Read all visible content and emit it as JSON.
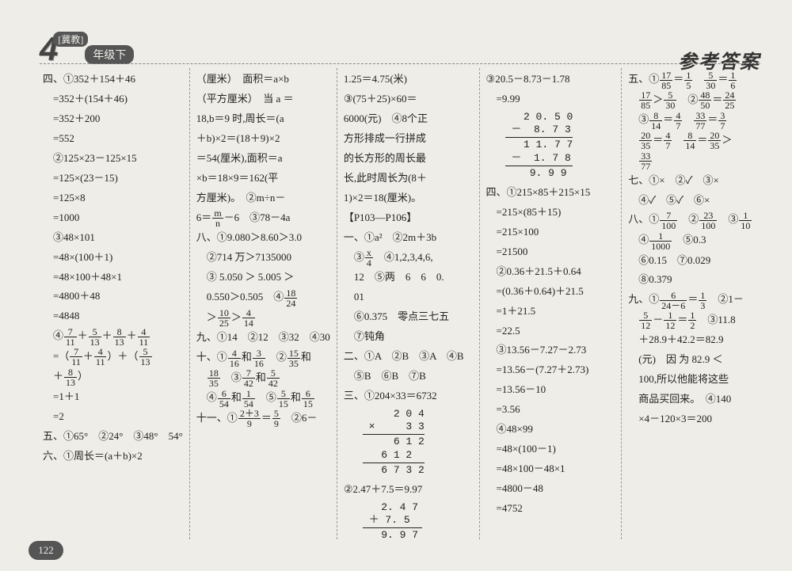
{
  "header": {
    "grade_number": "4",
    "grade_pill": "[冀教]",
    "grade_label": "年级下",
    "title_right": "参考答案"
  },
  "page_number": "122",
  "columns": {
    "c1": [
      "四、①352＋154＋46",
      "　=352＋(154＋46)",
      "　=352＋200",
      "　=552",
      "　②125×23－125×15",
      "　=125×(23－15)",
      "　=125×8",
      "　=1000",
      "　③48×101",
      "　=48×(100＋1)",
      "　=48×100＋48×1",
      "　=4800＋48",
      "　=4848",
      "　④{7/11}＋{5/13}＋{8/13}＋{4/11}",
      "　=（{7/11}＋{4/11}）＋（{5/13}",
      "　＋{8/13}）",
      "　=1＋1",
      "　=2",
      "五、①65°　②24°　③48°　54°",
      "六、①周长＝(a＋b)×2"
    ],
    "c2": [
      "（厘米）　面积＝a×b",
      "（平方厘米）　当 a ＝",
      "18,b＝9 时,周长＝(a",
      "＋b)×2＝(18＋9)×2",
      "＝54(厘米),面积＝a",
      "×b＝18×9＝162(平",
      "方厘米)。　②m÷n－",
      "6＝{m/n}－6　③78－4a",
      "八、①9.080＞8.60＞3.0",
      "　②714 万＞7135000",
      "　③ 5.050 ＞ 5.005 ＞",
      "　0.550＞0.505　④{18/24}",
      "　＞{10/25}＞{4/14}",
      "九、①14　②12　③32　④30",
      "十、①{4/16}和{3/16}　②{15/35}和",
      "　{18/35}　③{7/42}和{5/42}",
      "　④{6/54}和{1/54}　⑤{5/15}和{6/15}",
      "十一、①{2＋3/9}＝{5/9}　②6－"
    ],
    "c3_top": [
      "1.25＝4.75(米)",
      "③(75＋25)×60＝",
      "6000(元)　④8个正",
      "方形排成一行拼成",
      "的长方形的周长最",
      "长,此时周长为(8＋",
      "1)×2＝18(厘米)。",
      "【P103—P106】",
      "一、①a²　②2m＋3b",
      "　③{x/4}　④1,2,3,4,6,",
      "　12　⑤两　6　6　0.",
      "　01",
      "　⑥0.375　零点三七五",
      "　⑦钝角",
      "二、①A　②B　③A　④B",
      "　⑤B　⑥B　⑦B",
      "三、①204×33＝6732"
    ],
    "c3_arith1": "     2 0 4\n ×     3 3\n─────────\n     6 1 2\n   6 1 2  \n─────────\n   6 7 3 2",
    "c3_mid": [
      "②2.47＋7.5＝9.97"
    ],
    "c3_arith2": "   2. 4 7\n ＋ 7. 5  \n─────────\n   9. 9 7",
    "c4_top": [
      "③20.5－8.73－1.78",
      "　=9.99"
    ],
    "c4_arith": "   2 0. 5 0\n －  8. 7 3\n──────────\n   1 1. 7 7\n －  1. 7 8\n──────────\n    9. 9 9",
    "c4_rest": [
      "四、①215×85＋215×15",
      "　=215×(85＋15)",
      "　=215×100",
      "　=21500",
      "　②0.36＋21.5＋0.64",
      "　=(0.36＋0.64)＋21.5",
      "　=1＋21.5",
      "　=22.5",
      "　③13.56－7.27－2.73",
      "　=13.56－(7.27＋2.73)",
      "　=13.56－10",
      "　=3.56",
      "　④48×99",
      "　=48×(100－1)",
      "　=48×100－48×1",
      "　=4800－48",
      "　=4752"
    ],
    "c5": [
      "五、①{17/85}＝{1/5}　{5/30}＝{1/6}",
      "　{17/85}＞{5/30}　②{48/50}＝{24/25}",
      "　③{8/14}＝{4/7}　{33/77}＝{3/7}",
      "　{20/35}＝{4/7}　{8/14}＝{20/35}＞",
      "　{33/77}",
      "七、①×　②✓　③×",
      "　④✓　⑤✓　⑥×",
      "八、①{7/100}　②{23/100}　③{1/10}",
      "　④{1/1000}　⑤0.3",
      "　⑥0.15　⑦0.029",
      "　⑧0.379",
      "九、①{6/24－6}＝{1/3}　②1－",
      "　{5/12}－{1/12}＝{1/2}　③11.8",
      "　＋28.9＋42.2＝82.9",
      "　(元)　因 为 82.9 ＜",
      "　100,所以他能将这些",
      "　商品买回来。　④140",
      "　×4－120×3＝200"
    ]
  }
}
